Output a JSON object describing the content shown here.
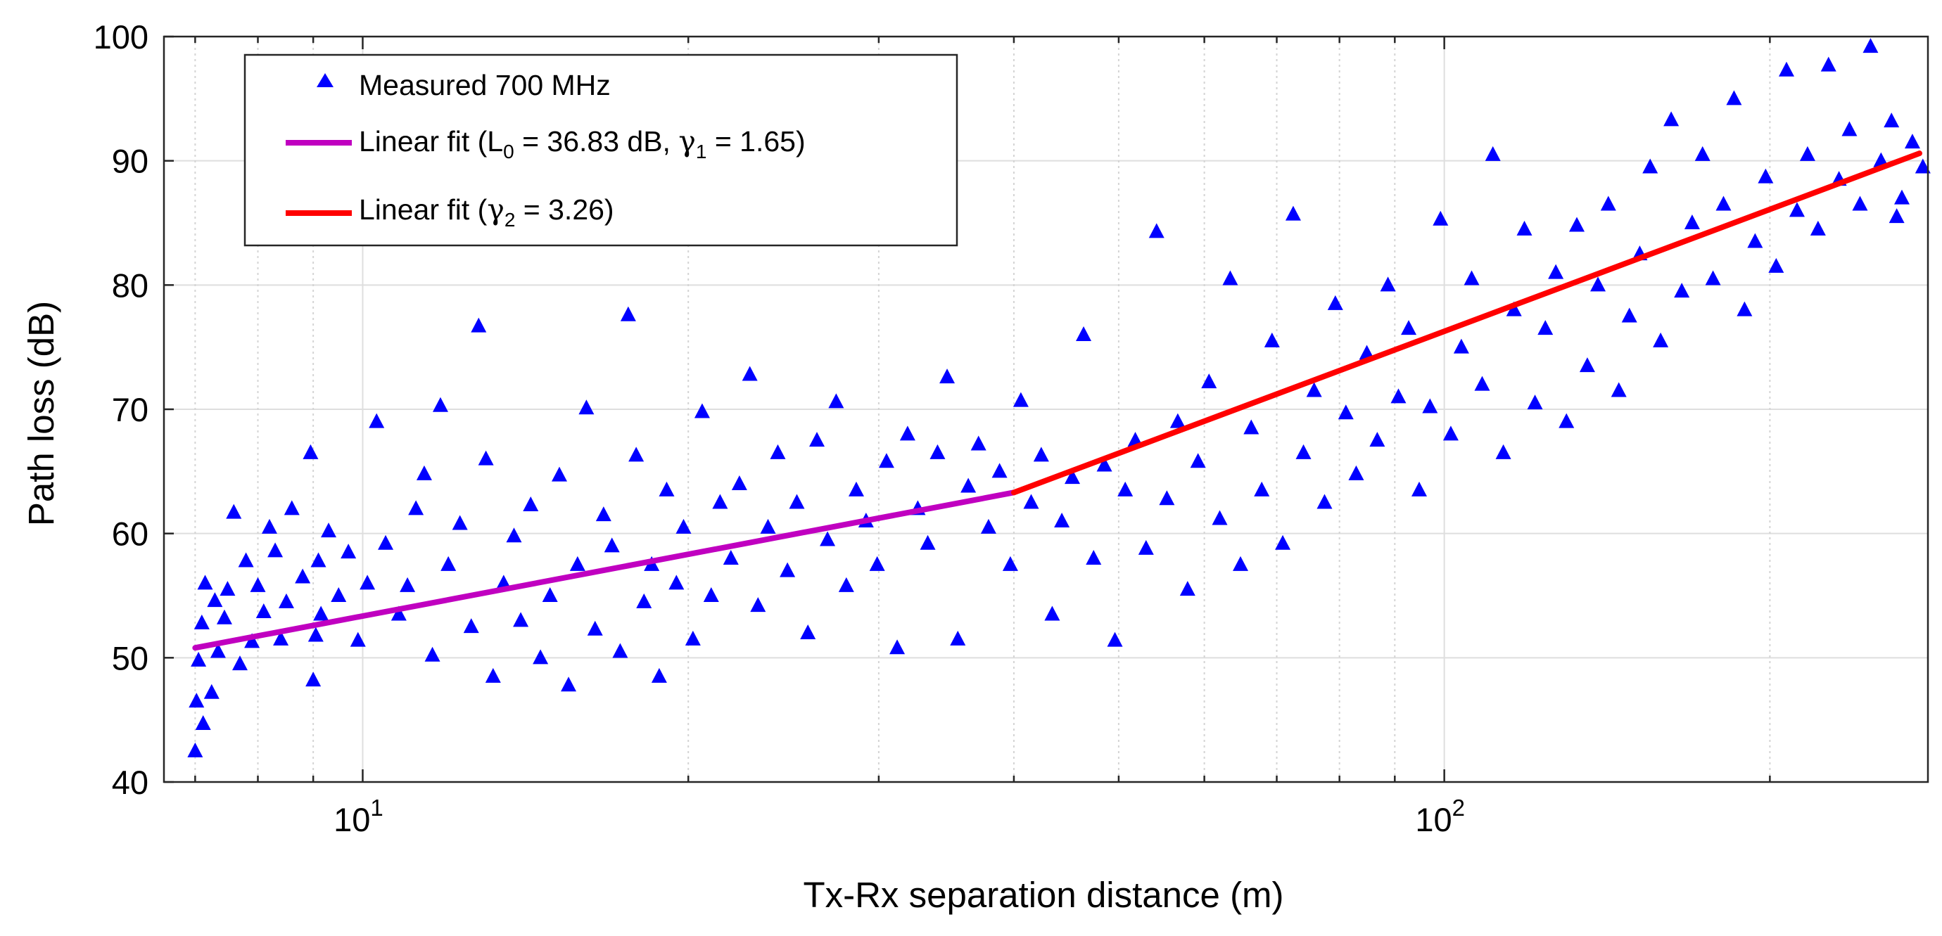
{
  "chart_data": {
    "type": "scatter",
    "title": "",
    "xlabel": "Tx-Rx separation distance (m)",
    "ylabel": "Path loss (dB)",
    "xscale": "log",
    "xlim": [
      6.55,
      280
    ],
    "ylim": [
      40,
      100
    ],
    "grid": true,
    "legend_location": "top-left",
    "y_ticks": [
      40,
      50,
      60,
      70,
      80,
      90,
      100
    ],
    "y_tick_labels": [
      "40",
      "50",
      "60",
      "70",
      "80",
      "90",
      "100"
    ],
    "x_ticks": [
      10,
      100
    ],
    "x_tick_labels": [
      {
        "base": "10",
        "exp": "1"
      },
      {
        "base": "10",
        "exp": "2"
      }
    ],
    "legend": [
      {
        "marker": "triangle",
        "color": "#0000ff",
        "label": "Measured 700 MHz"
      },
      {
        "marker": "line",
        "color": "#c000c0",
        "parts": [
          "Linear fit (L",
          "0",
          " = 36.83 dB, ",
          "γ",
          "1",
          " = 1.65)"
        ]
      },
      {
        "marker": "line",
        "color": "#ff0000",
        "parts": [
          "Linear fit (",
          "γ",
          "2",
          " = 3.26)"
        ]
      }
    ],
    "series": [
      {
        "name": "Measured 700 MHz",
        "type": "scatter",
        "color": "#0000ff",
        "points": [
          [
            7,
            42.5
          ],
          [
            7.02,
            46.5
          ],
          [
            7.05,
            49.8
          ],
          [
            7.1,
            52.8
          ],
          [
            7.12,
            44.7
          ],
          [
            7.15,
            56
          ],
          [
            7.25,
            47.2
          ],
          [
            7.3,
            54.6
          ],
          [
            7.35,
            50.5
          ],
          [
            7.45,
            53.2
          ],
          [
            7.5,
            55.5
          ],
          [
            7.6,
            61.7
          ],
          [
            7.7,
            49.5
          ],
          [
            7.8,
            57.8
          ],
          [
            7.9,
            51.3
          ],
          [
            8,
            55.8
          ],
          [
            8.1,
            53.7
          ],
          [
            8.2,
            60.5
          ],
          [
            8.3,
            58.6
          ],
          [
            8.4,
            51.5
          ],
          [
            8.5,
            54.5
          ],
          [
            8.6,
            62
          ],
          [
            8.8,
            56.5
          ],
          [
            8.95,
            66.5
          ],
          [
            9,
            48.2
          ],
          [
            9.05,
            51.8
          ],
          [
            9.1,
            57.8
          ],
          [
            9.15,
            53.5
          ],
          [
            9.3,
            60.2
          ],
          [
            9.5,
            55
          ],
          [
            9.7,
            58.5
          ],
          [
            9.9,
            51.4
          ],
          [
            10.1,
            56
          ],
          [
            10.3,
            69
          ],
          [
            10.5,
            59.2
          ],
          [
            10.8,
            53.5
          ],
          [
            11,
            55.8
          ],
          [
            11.2,
            62
          ],
          [
            11.4,
            64.8
          ],
          [
            11.6,
            50.2
          ],
          [
            11.8,
            70.3
          ],
          [
            12,
            57.5
          ],
          [
            12.3,
            60.8
          ],
          [
            12.6,
            52.5
          ],
          [
            12.8,
            76.7
          ],
          [
            13,
            66
          ],
          [
            13.2,
            48.5
          ],
          [
            13.5,
            56
          ],
          [
            13.8,
            59.8
          ],
          [
            14,
            53
          ],
          [
            14.3,
            62.3
          ],
          [
            14.6,
            50
          ],
          [
            14.9,
            55
          ],
          [
            15.2,
            64.7
          ],
          [
            15.5,
            47.8
          ],
          [
            15.8,
            57.5
          ],
          [
            16.1,
            70.1
          ],
          [
            16.4,
            52.3
          ],
          [
            16.7,
            61.5
          ],
          [
            17,
            59
          ],
          [
            17.3,
            50.5
          ],
          [
            17.6,
            77.6
          ],
          [
            17.9,
            66.3
          ],
          [
            18.2,
            54.5
          ],
          [
            18.5,
            57.5
          ],
          [
            18.8,
            48.5
          ],
          [
            19.1,
            63.5
          ],
          [
            19.5,
            56
          ],
          [
            19.8,
            60.5
          ],
          [
            20.2,
            51.5
          ],
          [
            20.6,
            69.8
          ],
          [
            21,
            55
          ],
          [
            21.4,
            62.5
          ],
          [
            21.9,
            58
          ],
          [
            22.3,
            64
          ],
          [
            22.8,
            72.8
          ],
          [
            23.2,
            54.2
          ],
          [
            23.7,
            60.5
          ],
          [
            24.2,
            66.5
          ],
          [
            24.7,
            57
          ],
          [
            25.2,
            62.5
          ],
          [
            25.8,
            52
          ],
          [
            26.3,
            67.5
          ],
          [
            26.9,
            59.5
          ],
          [
            27.4,
            70.6
          ],
          [
            28,
            55.8
          ],
          [
            28.6,
            63.5
          ],
          [
            29.2,
            61
          ],
          [
            29.9,
            57.5
          ],
          [
            30.5,
            65.8
          ],
          [
            31.2,
            50.8
          ],
          [
            31.9,
            68
          ],
          [
            32.6,
            62
          ],
          [
            33.3,
            59.2
          ],
          [
            34,
            66.5
          ],
          [
            34.7,
            72.6
          ],
          [
            35.5,
            51.5
          ],
          [
            36.3,
            63.8
          ],
          [
            37.1,
            67.2
          ],
          [
            37.9,
            60.5
          ],
          [
            38.8,
            65
          ],
          [
            39.7,
            57.5
          ],
          [
            40.6,
            70.7
          ],
          [
            41.5,
            62.5
          ],
          [
            42.4,
            66.3
          ],
          [
            43.4,
            53.5
          ],
          [
            44.3,
            61
          ],
          [
            45.3,
            64.5
          ],
          [
            46.4,
            76
          ],
          [
            47.4,
            58
          ],
          [
            48.5,
            65.5
          ],
          [
            49.6,
            51.4
          ],
          [
            50.7,
            63.5
          ],
          [
            51.8,
            67.5
          ],
          [
            53,
            58.8
          ],
          [
            54.2,
            84.3
          ],
          [
            55.4,
            62.8
          ],
          [
            56.7,
            69
          ],
          [
            57.9,
            55.5
          ],
          [
            59.2,
            65.8
          ],
          [
            60.6,
            72.2
          ],
          [
            62,
            61.2
          ],
          [
            63.4,
            80.5
          ],
          [
            64.8,
            57.5
          ],
          [
            66.3,
            68.5
          ],
          [
            67.8,
            63.5
          ],
          [
            69.3,
            75.5
          ],
          [
            70.9,
            59.2
          ],
          [
            72.5,
            85.7
          ],
          [
            74.1,
            66.5
          ],
          [
            75.8,
            71.5
          ],
          [
            77.5,
            62.5
          ],
          [
            79.3,
            78.5
          ],
          [
            81.1,
            69.7
          ],
          [
            82.9,
            64.8
          ],
          [
            84.8,
            74.5
          ],
          [
            86.7,
            67.5
          ],
          [
            88.7,
            80
          ],
          [
            90.7,
            71
          ],
          [
            92.7,
            76.5
          ],
          [
            94.8,
            63.5
          ],
          [
            97,
            70.2
          ],
          [
            99.2,
            85.3
          ],
          [
            101.4,
            68
          ],
          [
            103.7,
            75
          ],
          [
            106,
            80.5
          ],
          [
            108.4,
            72
          ],
          [
            110.9,
            90.5
          ],
          [
            113.4,
            66.5
          ],
          [
            116,
            78
          ],
          [
            118.6,
            84.5
          ],
          [
            121.3,
            70.5
          ],
          [
            124,
            76.5
          ],
          [
            126.8,
            81
          ],
          [
            129.7,
            69
          ],
          [
            132.6,
            84.8
          ],
          [
            135.6,
            73.5
          ],
          [
            138.7,
            80
          ],
          [
            141.8,
            86.5
          ],
          [
            145,
            71.5
          ],
          [
            148.3,
            77.5
          ],
          [
            151.6,
            82.5
          ],
          [
            155,
            89.5
          ],
          [
            158.5,
            75.5
          ],
          [
            162.1,
            93.3
          ],
          [
            165.8,
            79.5
          ],
          [
            169.5,
            85
          ],
          [
            173.3,
            90.5
          ],
          [
            177.2,
            80.5
          ],
          [
            181.2,
            86.5
          ],
          [
            185.3,
            95
          ],
          [
            189.5,
            78
          ],
          [
            193.8,
            83.5
          ],
          [
            198.2,
            88.7
          ],
          [
            202.7,
            81.5
          ],
          [
            207.2,
            97.3
          ],
          [
            211.9,
            86
          ],
          [
            216.7,
            90.5
          ],
          [
            221.6,
            84.5
          ],
          [
            226.6,
            97.7
          ],
          [
            231.7,
            88.5
          ],
          [
            236.9,
            92.5
          ],
          [
            242.3,
            86.5
          ],
          [
            247.8,
            99.2
          ],
          [
            253.4,
            90
          ],
          [
            259.1,
            93.2
          ],
          [
            264.9,
            87
          ],
          [
            270.9,
            91.5
          ],
          [
            277,
            89.5
          ],
          [
            262,
            85.5
          ]
        ]
      },
      {
        "name": "Linear fit (L0 = 36.83 dB, γ1 = 1.65)",
        "type": "line",
        "color": "#c000c0",
        "x": [
          7,
          40
        ],
        "y": [
          50.8,
          63.3
        ]
      },
      {
        "name": "Linear fit (γ2 = 3.26)",
        "type": "line",
        "color": "#ff0000",
        "x": [
          40,
          275
        ],
        "y": [
          63.3,
          90.6
        ]
      }
    ]
  }
}
